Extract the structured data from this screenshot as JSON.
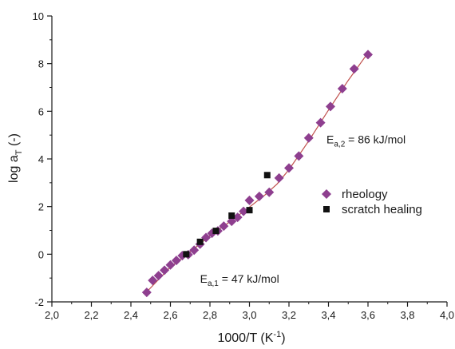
{
  "chart_data": {
    "type": "scatter",
    "xlabel": "1000/T (K",
    "xlabel_sup": "-1",
    "xlabel_tail": ")",
    "ylabel": "log a",
    "ylabel_sub": "T",
    "ylabel_tail": " (-)",
    "xlim": [
      2.0,
      4.0
    ],
    "ylim": [
      -2,
      10
    ],
    "x_ticks": [
      "2,0",
      "2,2",
      "2,4",
      "2,6",
      "2,8",
      "3,0",
      "3,2",
      "3,4",
      "3,6",
      "3,8",
      "4,0"
    ],
    "y_ticks": [
      "-2",
      "0",
      "2",
      "4",
      "6",
      "8",
      "10"
    ],
    "legend_position": "right-middle",
    "series": [
      {
        "name": "rheology",
        "marker": "diamond",
        "color": "#8e3f8f",
        "points": [
          [
            2.48,
            -1.6
          ],
          [
            2.51,
            -1.1
          ],
          [
            2.54,
            -0.9
          ],
          [
            2.57,
            -0.67
          ],
          [
            2.6,
            -0.45
          ],
          [
            2.63,
            -0.26
          ],
          [
            2.66,
            -0.06
          ],
          [
            2.69,
            -0.02
          ],
          [
            2.72,
            0.17
          ],
          [
            2.75,
            0.42
          ],
          [
            2.78,
            0.7
          ],
          [
            2.81,
            0.88
          ],
          [
            2.84,
            0.98
          ],
          [
            2.87,
            1.18
          ],
          [
            2.91,
            1.38
          ],
          [
            2.94,
            1.55
          ],
          [
            2.97,
            1.8
          ],
          [
            3.0,
            2.26
          ],
          [
            3.05,
            2.43
          ],
          [
            3.1,
            2.6
          ],
          [
            3.15,
            3.2
          ],
          [
            3.2,
            3.62
          ],
          [
            3.25,
            4.12
          ],
          [
            3.3,
            4.88
          ],
          [
            3.36,
            5.52
          ],
          [
            3.41,
            6.2
          ],
          [
            3.47,
            6.95
          ],
          [
            3.53,
            7.78
          ],
          [
            3.6,
            8.38
          ]
        ]
      },
      {
        "name": "scratch healing",
        "marker": "square",
        "color": "#111111",
        "points": [
          [
            2.68,
            0.0
          ],
          [
            2.75,
            0.52
          ],
          [
            2.83,
            0.98
          ],
          [
            2.91,
            1.62
          ],
          [
            3.0,
            1.85
          ],
          [
            3.09,
            3.32
          ]
        ]
      }
    ],
    "fit_line": {
      "color": "#c0504d",
      "points": [
        [
          2.48,
          -1.58
        ],
        [
          2.6,
          -0.54
        ],
        [
          2.7,
          0.1
        ],
        [
          2.8,
          0.78
        ],
        [
          2.9,
          1.36
        ],
        [
          3.0,
          1.98
        ],
        [
          3.08,
          2.5
        ],
        [
          3.14,
          2.95
        ],
        [
          3.2,
          3.55
        ],
        [
          3.3,
          4.75
        ],
        [
          3.4,
          6.05
        ],
        [
          3.5,
          7.3
        ],
        [
          3.6,
          8.45
        ]
      ]
    },
    "annotations": [
      {
        "text_main": "E",
        "text_sub": "a,2",
        "text_rest": " = 86 kJ/mol",
        "x": 3.39,
        "y": 4.65
      },
      {
        "text_main": "E",
        "text_sub": "a,1",
        "text_rest": " = 47 kJ/mol",
        "x": 2.75,
        "y": -1.2
      }
    ]
  }
}
